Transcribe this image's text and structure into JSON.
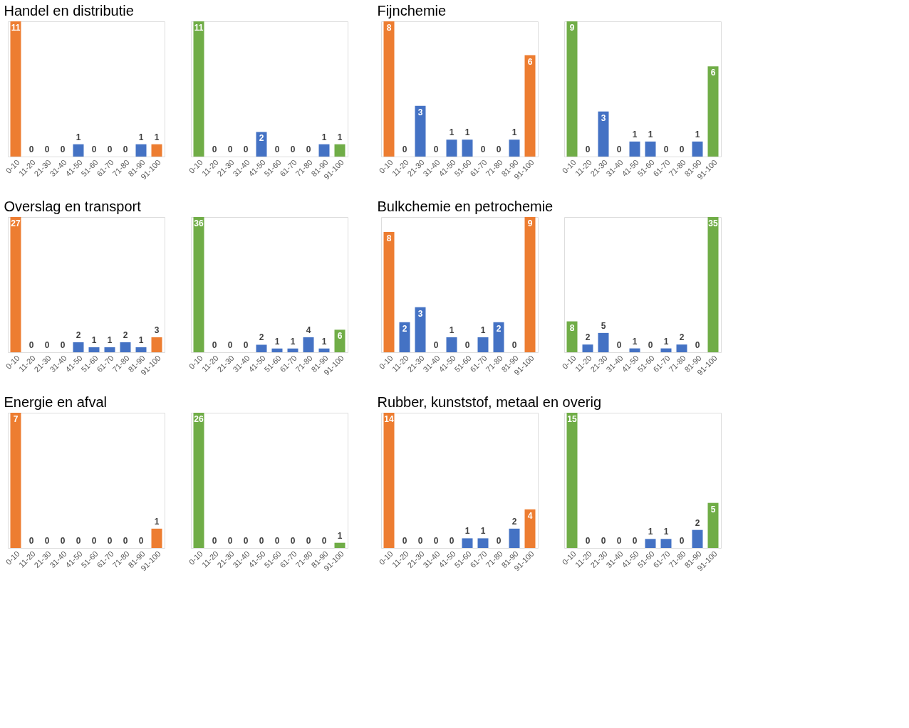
{
  "chart_data": [
    {
      "type": "bar",
      "title": "Handel en distributie",
      "categories": [
        "0-10",
        "11-20",
        "21-30",
        "31-40",
        "41-50",
        "51-60",
        "61-70",
        "71-80",
        "81-90",
        "91-100"
      ],
      "values": [
        11,
        0,
        0,
        0,
        1,
        0,
        0,
        0,
        1,
        1
      ],
      "colors": [
        "#ed7d31",
        "#4472c4",
        "#4472c4",
        "#4472c4",
        "#4472c4",
        "#4472c4",
        "#4472c4",
        "#4472c4",
        "#4472c4",
        "#ed7d31"
      ],
      "data_labels": true
    },
    {
      "type": "bar",
      "categories": [
        "0-10",
        "11-20",
        "21-30",
        "31-40",
        "41-50",
        "51-60",
        "61-70",
        "71-80",
        "81-90",
        "91-100"
      ],
      "values": [
        11,
        0,
        0,
        0,
        2,
        0,
        0,
        0,
        1,
        1
      ],
      "colors": [
        "#70ad47",
        "#4472c4",
        "#4472c4",
        "#4472c4",
        "#4472c4",
        "#4472c4",
        "#4472c4",
        "#4472c4",
        "#4472c4",
        "#70ad47"
      ],
      "data_labels": true
    },
    {
      "type": "bar",
      "title": "Fijnchemie",
      "categories": [
        "0-10",
        "11-20",
        "21-30",
        "31-40",
        "41-50",
        "51-60",
        "61-70",
        "71-80",
        "81-90",
        "91-100"
      ],
      "values": [
        8,
        0,
        3,
        0,
        1,
        1,
        0,
        0,
        1,
        6
      ],
      "colors": [
        "#ed7d31",
        "#4472c4",
        "#4472c4",
        "#4472c4",
        "#4472c4",
        "#4472c4",
        "#4472c4",
        "#4472c4",
        "#4472c4",
        "#ed7d31"
      ],
      "data_labels": true
    },
    {
      "type": "bar",
      "categories": [
        "0-10",
        "11-20",
        "21-30",
        "31-40",
        "41-50",
        "51-60",
        "61-70",
        "71-80",
        "81-90",
        "91-100"
      ],
      "values": [
        9,
        0,
        3,
        0,
        1,
        1,
        0,
        0,
        1,
        6
      ],
      "colors": [
        "#70ad47",
        "#4472c4",
        "#4472c4",
        "#4472c4",
        "#4472c4",
        "#4472c4",
        "#4472c4",
        "#4472c4",
        "#4472c4",
        "#70ad47"
      ],
      "data_labels": true
    },
    {
      "type": "bar",
      "title": "Overslag en transport",
      "categories": [
        "0-10",
        "11-20",
        "21-30",
        "31-40",
        "41-50",
        "51-60",
        "61-70",
        "71-80",
        "81-90",
        "91-100"
      ],
      "values": [
        27,
        0,
        0,
        0,
        2,
        1,
        1,
        2,
        1,
        3
      ],
      "colors": [
        "#ed7d31",
        "#4472c4",
        "#4472c4",
        "#4472c4",
        "#4472c4",
        "#4472c4",
        "#4472c4",
        "#4472c4",
        "#4472c4",
        "#ed7d31"
      ],
      "data_labels": true
    },
    {
      "type": "bar",
      "categories": [
        "0-10",
        "11-20",
        "21-30",
        "31-40",
        "41-50",
        "51-60",
        "61-70",
        "71-80",
        "81-90",
        "91-100"
      ],
      "values": [
        36,
        0,
        0,
        0,
        2,
        1,
        1,
        4,
        1,
        6
      ],
      "colors": [
        "#70ad47",
        "#4472c4",
        "#4472c4",
        "#4472c4",
        "#4472c4",
        "#4472c4",
        "#4472c4",
        "#4472c4",
        "#4472c4",
        "#70ad47"
      ],
      "data_labels": true
    },
    {
      "type": "bar",
      "title": "Bulkchemie en petrochemie",
      "categories": [
        "0-10",
        "11-20",
        "21-30",
        "31-40",
        "41-50",
        "51-60",
        "61-70",
        "71-80",
        "81-90",
        "91-100"
      ],
      "values": [
        8,
        2,
        3,
        0,
        1,
        0,
        1,
        2,
        0,
        9
      ],
      "colors": [
        "#ed7d31",
        "#4472c4",
        "#4472c4",
        "#4472c4",
        "#4472c4",
        "#4472c4",
        "#4472c4",
        "#4472c4",
        "#4472c4",
        "#ed7d31"
      ],
      "data_labels": true
    },
    {
      "type": "bar",
      "categories": [
        "0-10",
        "11-20",
        "21-30",
        "31-40",
        "41-50",
        "51-60",
        "61-70",
        "71-80",
        "81-90",
        "91-100"
      ],
      "values": [
        8,
        2,
        5,
        0,
        1,
        0,
        1,
        2,
        0,
        35
      ],
      "colors": [
        "#70ad47",
        "#4472c4",
        "#4472c4",
        "#4472c4",
        "#4472c4",
        "#4472c4",
        "#4472c4",
        "#4472c4",
        "#4472c4",
        "#70ad47"
      ],
      "data_labels": true
    },
    {
      "type": "bar",
      "title": "Energie en afval",
      "categories": [
        "0-10",
        "11-20",
        "21-30",
        "31-40",
        "41-50",
        "51-60",
        "61-70",
        "71-80",
        "81-90",
        "91-100"
      ],
      "values": [
        7,
        0,
        0,
        0,
        0,
        0,
        0,
        0,
        0,
        1
      ],
      "colors": [
        "#ed7d31",
        "#4472c4",
        "#4472c4",
        "#4472c4",
        "#4472c4",
        "#4472c4",
        "#4472c4",
        "#4472c4",
        "#4472c4",
        "#ed7d31"
      ],
      "data_labels": true
    },
    {
      "type": "bar",
      "categories": [
        "0-10",
        "11-20",
        "21-30",
        "31-40",
        "41-50",
        "51-60",
        "61-70",
        "71-80",
        "81-90",
        "91-100"
      ],
      "values": [
        26,
        0,
        0,
        0,
        0,
        0,
        0,
        0,
        0,
        1
      ],
      "colors": [
        "#70ad47",
        "#4472c4",
        "#4472c4",
        "#4472c4",
        "#4472c4",
        "#4472c4",
        "#4472c4",
        "#4472c4",
        "#4472c4",
        "#70ad47"
      ],
      "data_labels": true
    },
    {
      "type": "bar",
      "title": "Rubber, kunststof, metaal en overig",
      "categories": [
        "0-10",
        "11-20",
        "21-30",
        "31-40",
        "41-50",
        "51-60",
        "61-70",
        "71-80",
        "81-90",
        "91-100"
      ],
      "values": [
        14,
        0,
        0,
        0,
        0,
        1,
        1,
        0,
        2,
        4
      ],
      "colors": [
        "#ed7d31",
        "#4472c4",
        "#4472c4",
        "#4472c4",
        "#4472c4",
        "#4472c4",
        "#4472c4",
        "#4472c4",
        "#4472c4",
        "#ed7d31"
      ],
      "data_labels": true
    },
    {
      "type": "bar",
      "categories": [
        "0-10",
        "11-20",
        "21-30",
        "31-40",
        "41-50",
        "51-60",
        "61-70",
        "71-80",
        "81-90",
        "91-100"
      ],
      "values": [
        15,
        0,
        0,
        0,
        0,
        1,
        1,
        0,
        2,
        5
      ],
      "colors": [
        "#70ad47",
        "#4472c4",
        "#4472c4",
        "#4472c4",
        "#4472c4",
        "#4472c4",
        "#4472c4",
        "#4472c4",
        "#4472c4",
        "#70ad47"
      ],
      "data_labels": true
    }
  ]
}
